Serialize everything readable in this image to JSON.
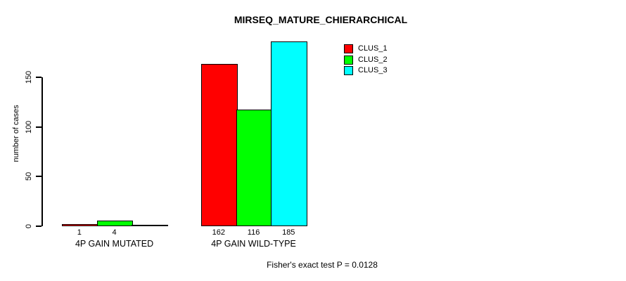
{
  "chart_data": {
    "type": "bar",
    "title": "MIRSEQ_MATURE_CHIERARCHICAL",
    "xlabel": "",
    "ylabel": "number of cases",
    "categories": [
      "4P GAIN MUTATED",
      "4P GAIN WILD-TYPE"
    ],
    "series": [
      {
        "name": "CLUS_1",
        "color": "#ff0000",
        "values": [
          1,
          162
        ]
      },
      {
        "name": "CLUS_2",
        "color": "#00ff00",
        "values": [
          4,
          116
        ]
      },
      {
        "name": "CLUS_3",
        "color": "#00ffff",
        "values": [
          0,
          185
        ]
      }
    ],
    "bar_value_labels": [
      [
        "1",
        "4",
        ""
      ],
      [
        "162",
        "116",
        "185"
      ]
    ],
    "y_ticks": [
      {
        "value": 0,
        "label": "0"
      },
      {
        "value": 50,
        "label": "50"
      },
      {
        "value": 100,
        "label": "100"
      },
      {
        "value": 150,
        "label": "150"
      }
    ],
    "ylim": [
      0,
      187
    ],
    "grid": false,
    "legend": {
      "position": "top-right",
      "entries": [
        {
          "label": "CLUS_1",
          "color": "#ff0000"
        },
        {
          "label": "CLUS_2",
          "color": "#00ff00"
        },
        {
          "label": "CLUS_3",
          "color": "#00ffff"
        }
      ]
    },
    "annotation": "Fisher's exact test P = 0.0128"
  }
}
